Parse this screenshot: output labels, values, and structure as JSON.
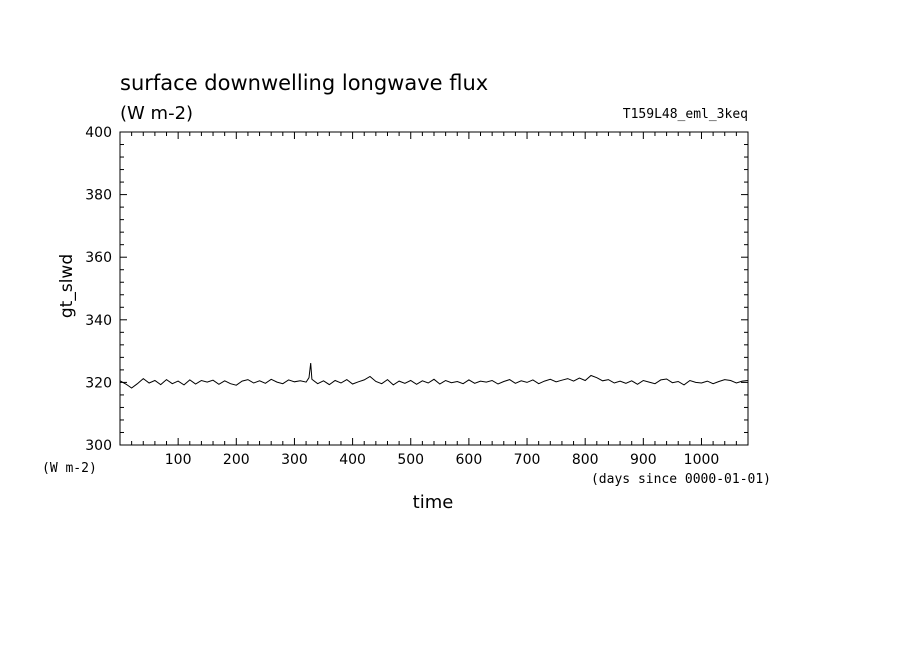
{
  "chart_data": {
    "type": "line",
    "title": "surface downwelling longwave flux",
    "subtitle": "(W m-2)",
    "run_label": "T159L48_eml_3keq",
    "xlabel": "time",
    "x_unit": "(days since 0000-01-01)",
    "ylabel": "gt_slwd",
    "y_unit": "(W m-2)",
    "xlim": [
      0,
      1080
    ],
    "ylim": [
      300,
      400
    ],
    "x_ticks": [
      100,
      200,
      300,
      400,
      500,
      600,
      700,
      800,
      900,
      1000
    ],
    "y_ticks": [
      300,
      320,
      340,
      360,
      380,
      400
    ],
    "grid": false,
    "series": [
      {
        "x": [
          0,
          10,
          20,
          30,
          40,
          50,
          60,
          70,
          80,
          90,
          100,
          110,
          120,
          130,
          140,
          150,
          160,
          170,
          180,
          190,
          200,
          210,
          220,
          230,
          240,
          250,
          260,
          270,
          280,
          290,
          300,
          310,
          320,
          325,
          328,
          330,
          340,
          350,
          360,
          370,
          380,
          390,
          400,
          410,
          420,
          430,
          440,
          450,
          460,
          470,
          480,
          490,
          500,
          510,
          520,
          530,
          540,
          550,
          560,
          570,
          580,
          590,
          600,
          610,
          620,
          630,
          640,
          650,
          660,
          670,
          680,
          690,
          700,
          710,
          720,
          730,
          740,
          750,
          760,
          770,
          780,
          790,
          800,
          810,
          820,
          830,
          840,
          850,
          860,
          870,
          880,
          890,
          900,
          910,
          920,
          930,
          940,
          950,
          960,
          970,
          980,
          990,
          1000,
          1010,
          1020,
          1030,
          1040,
          1050,
          1060,
          1070,
          1080
        ],
        "y": [
          320.5,
          319.5,
          318.2,
          319.6,
          321.2,
          319.8,
          320.6,
          319.3,
          320.9,
          319.6,
          320.4,
          319.2,
          320.8,
          319.5,
          320.6,
          320.1,
          320.7,
          319.4,
          320.5,
          319.6,
          319.1,
          320.4,
          320.9,
          319.8,
          320.5,
          319.7,
          321.0,
          320.1,
          319.6,
          320.8,
          320.2,
          320.5,
          320.1,
          321.5,
          326.2,
          321.0,
          319.6,
          320.5,
          319.3,
          320.6,
          319.8,
          320.9,
          319.5,
          320.2,
          320.8,
          321.9,
          320.3,
          319.6,
          320.9,
          319.2,
          320.4,
          319.7,
          320.6,
          319.4,
          320.5,
          319.8,
          321.0,
          319.5,
          320.6,
          319.9,
          320.3,
          319.6,
          320.8,
          319.7,
          320.4,
          320.1,
          320.6,
          319.5,
          320.3,
          320.9,
          319.7,
          320.5,
          320.0,
          320.8,
          319.6,
          320.4,
          321.0,
          320.2,
          320.7,
          321.2,
          320.4,
          321.4,
          320.6,
          322.2,
          321.5,
          320.5,
          320.9,
          319.8,
          320.4,
          319.7,
          320.5,
          319.4,
          320.6,
          320.1,
          319.6,
          320.8,
          321.1,
          319.9,
          320.3,
          319.2,
          320.6,
          320.0,
          319.8,
          320.4,
          319.6,
          320.3,
          320.9,
          320.6,
          319.8,
          320.4,
          320.6
        ]
      }
    ]
  }
}
